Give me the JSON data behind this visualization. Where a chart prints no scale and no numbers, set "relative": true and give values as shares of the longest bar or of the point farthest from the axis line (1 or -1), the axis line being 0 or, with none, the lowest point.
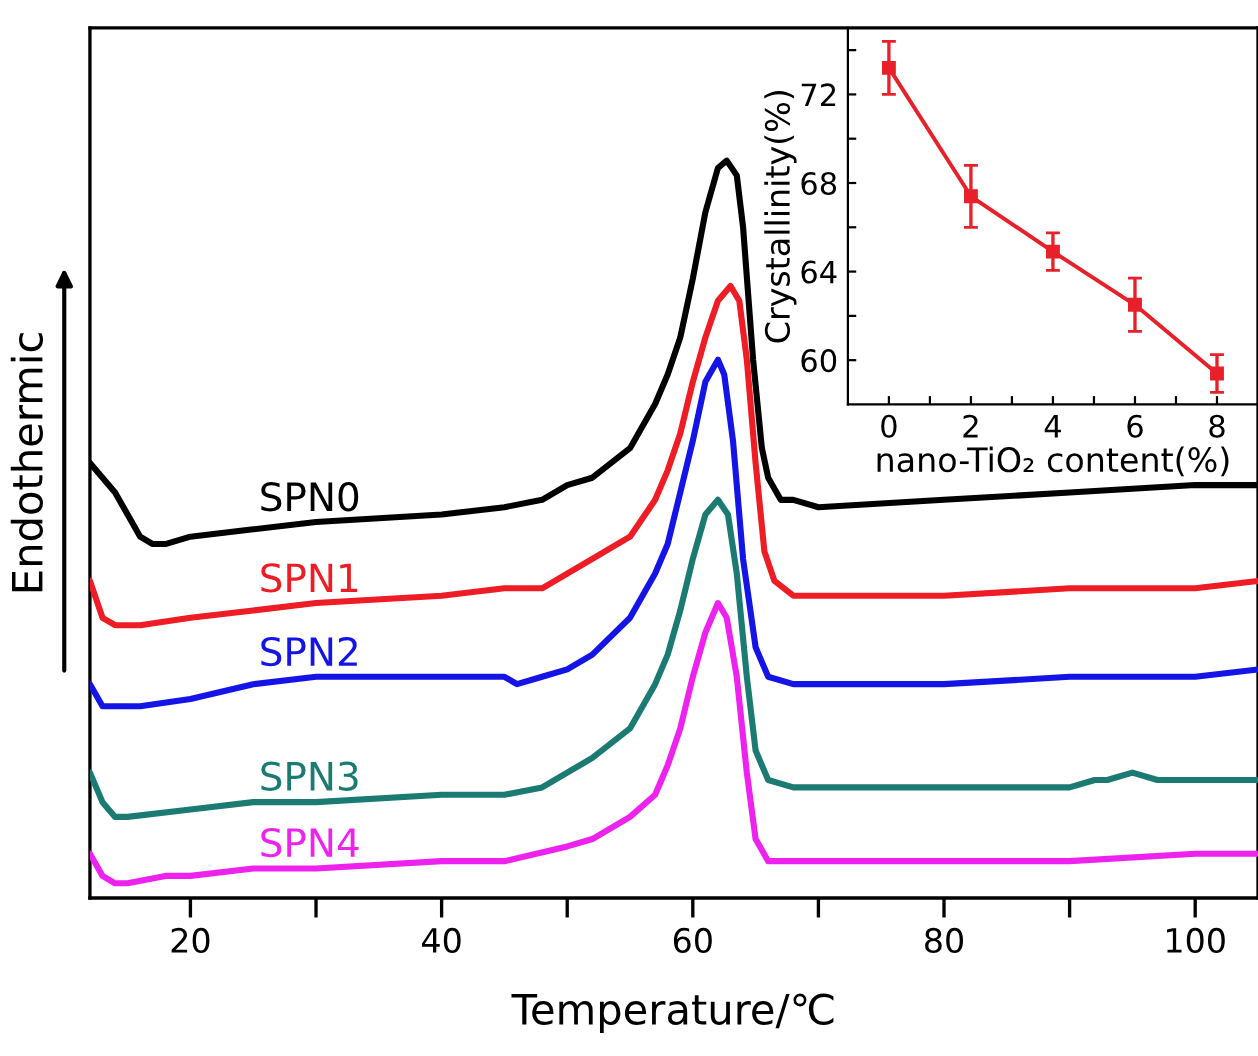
{
  "chart_data": [
    {
      "type": "line",
      "relative": true,
      "xlabel": "Temperature/℃",
      "ylabel": "Endothermic",
      "tick_labels": "x",
      "xlim": [
        12,
        105
      ],
      "xticks": [
        20,
        {
          "value": 30,
          "label": null
        },
        40,
        {
          "value": 50,
          "label": null
        },
        60,
        {
          "value": 70,
          "label": null
        },
        80,
        {
          "value": 90,
          "label": null
        },
        100
      ],
      "series": [
        {
          "name": "SPN0",
          "color": "#000000",
          "x": [
            12,
            14,
            16,
            17,
            18,
            20,
            25,
            30,
            40,
            45,
            48,
            50,
            52,
            55,
            57,
            58,
            59,
            60,
            61,
            62,
            62.7,
            63.5,
            64,
            64.8,
            65.5,
            66,
            67,
            68,
            70,
            80,
            90,
            100,
            105
          ],
          "values": [
            0.59,
            0.55,
            0.49,
            0.48,
            0.48,
            0.49,
            0.5,
            0.51,
            0.52,
            0.53,
            0.54,
            0.56,
            0.57,
            0.61,
            0.67,
            0.71,
            0.76,
            0.84,
            0.93,
            0.99,
            1.0,
            0.98,
            0.91,
            0.73,
            0.61,
            0.57,
            0.54,
            0.54,
            0.53,
            0.54,
            0.55,
            0.56,
            0.56
          ]
        },
        {
          "name": "SPN1",
          "color": "#ee1c24",
          "x": [
            12,
            13,
            14,
            16,
            20,
            25,
            30,
            40,
            45,
            48,
            50,
            52,
            55,
            57,
            58,
            59,
            60,
            61,
            62,
            63,
            63.7,
            64.3,
            65,
            65.7,
            66.5,
            68,
            70,
            80,
            90,
            100,
            105
          ],
          "values": [
            0.43,
            0.38,
            0.37,
            0.37,
            0.38,
            0.39,
            0.4,
            0.41,
            0.42,
            0.42,
            0.44,
            0.46,
            0.49,
            0.54,
            0.58,
            0.63,
            0.7,
            0.76,
            0.81,
            0.83,
            0.81,
            0.73,
            0.59,
            0.47,
            0.43,
            0.41,
            0.41,
            0.41,
            0.42,
            0.42,
            0.43
          ]
        },
        {
          "name": "SPN2",
          "color": "#1414e6",
          "x": [
            12,
            13,
            14,
            16,
            20,
            25,
            30,
            40,
            45,
            46,
            48,
            50,
            52,
            55,
            57,
            58,
            59,
            60,
            61,
            62,
            62.5,
            63.2,
            64,
            65,
            66,
            68,
            70,
            80,
            90,
            100,
            105
          ],
          "values": [
            0.29,
            0.26,
            0.26,
            0.26,
            0.27,
            0.29,
            0.3,
            0.3,
            0.3,
            0.29,
            0.3,
            0.31,
            0.33,
            0.38,
            0.44,
            0.48,
            0.55,
            0.62,
            0.7,
            0.73,
            0.71,
            0.62,
            0.46,
            0.34,
            0.3,
            0.29,
            0.29,
            0.29,
            0.3,
            0.3,
            0.31
          ]
        },
        {
          "name": "SPN3",
          "color": "#1b7a72",
          "x": [
            12,
            13,
            14,
            15,
            20,
            25,
            30,
            40,
            45,
            48,
            50,
            52,
            55,
            57,
            58,
            59,
            60,
            61,
            62,
            62.8,
            63.5,
            64.3,
            65,
            66,
            68,
            80,
            90,
            92,
            93,
            95,
            97,
            100,
            105
          ],
          "values": [
            0.17,
            0.13,
            0.11,
            0.11,
            0.12,
            0.13,
            0.13,
            0.14,
            0.14,
            0.15,
            0.17,
            0.19,
            0.23,
            0.29,
            0.33,
            0.39,
            0.46,
            0.52,
            0.54,
            0.52,
            0.44,
            0.3,
            0.2,
            0.16,
            0.15,
            0.15,
            0.15,
            0.16,
            0.16,
            0.17,
            0.16,
            0.16,
            0.16
          ]
        },
        {
          "name": "SPN4",
          "color": "#ee22ee",
          "x": [
            12,
            13,
            14,
            15,
            18,
            20,
            25,
            30,
            40,
            45,
            50,
            52,
            55,
            57,
            58,
            59,
            60,
            61,
            62,
            62.7,
            63.5,
            64.3,
            65,
            66,
            68,
            80,
            90,
            100,
            105
          ],
          "values": [
            0.06,
            0.03,
            0.02,
            0.02,
            0.03,
            0.03,
            0.04,
            0.04,
            0.05,
            0.05,
            0.07,
            0.08,
            0.11,
            0.14,
            0.18,
            0.23,
            0.3,
            0.36,
            0.4,
            0.38,
            0.3,
            0.17,
            0.08,
            0.05,
            0.05,
            0.05,
            0.05,
            0.06,
            0.06
          ]
        }
      ]
    },
    {
      "type": "line",
      "xlabel": "nano-TiO₂ content(%)",
      "ylabel": "Crystallinity(%)",
      "marker": "square",
      "xlim": [
        -1,
        9
      ],
      "ylim": [
        58,
        75
      ],
      "xticks": [
        0,
        {
          "value": 1,
          "label": null
        },
        2,
        {
          "value": 3,
          "label": null
        },
        4,
        {
          "value": 5,
          "label": null
        },
        6,
        {
          "value": 7,
          "label": null
        },
        8
      ],
      "yticks": [
        60,
        {
          "value": 62,
          "label": null
        },
        64,
        {
          "value": 66,
          "label": null
        },
        68,
        {
          "value": 70,
          "label": null
        },
        72,
        {
          "value": 74,
          "label": null
        }
      ],
      "x": [
        0,
        2,
        4,
        6,
        8
      ],
      "series": [
        {
          "color": "#e8202a",
          "values": [
            73.2,
            67.4,
            64.9,
            62.5,
            59.4
          ],
          "errors": [
            1.2,
            1.4,
            0.85,
            1.2,
            0.85
          ]
        }
      ]
    }
  ]
}
